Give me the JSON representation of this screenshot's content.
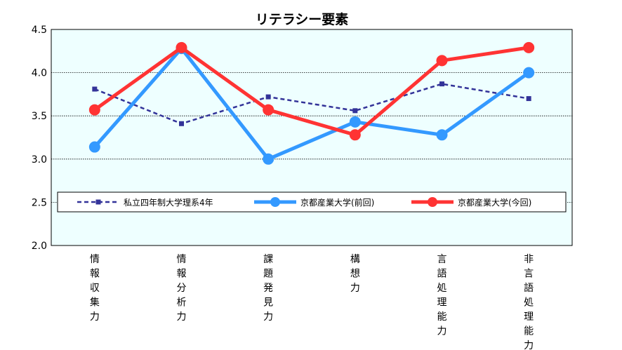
{
  "chart_data": {
    "type": "line",
    "title": "リテラシー要素",
    "xlabel": "",
    "ylabel": "",
    "ylim": [
      2.0,
      4.5
    ],
    "yticks": [
      "2.0",
      "2.5",
      "3.0",
      "3.5",
      "4.0",
      "4.5"
    ],
    "grid": true,
    "legend_position": "inside-lower",
    "categories": [
      "情報収集力",
      "情報分析力",
      "課題発見力",
      "構想力",
      "言語処理能力",
      "非言語処理能力"
    ],
    "series": [
      {
        "name": "私立四年制大学理系4年",
        "values": [
          3.81,
          3.41,
          3.72,
          3.56,
          3.87,
          3.7
        ],
        "color": "#333399",
        "style": "dashed",
        "marker": "square"
      },
      {
        "name": "京都産業大学(前回)",
        "values": [
          3.14,
          4.28,
          3.0,
          3.43,
          3.28,
          4.0
        ],
        "color": "#3399ff",
        "style": "solid",
        "marker": "circle"
      },
      {
        "name": "京都産業大学(今回)",
        "values": [
          3.57,
          4.29,
          3.57,
          3.28,
          4.14,
          4.29
        ],
        "color": "#ff3333",
        "style": "solid",
        "marker": "circle"
      }
    ]
  }
}
